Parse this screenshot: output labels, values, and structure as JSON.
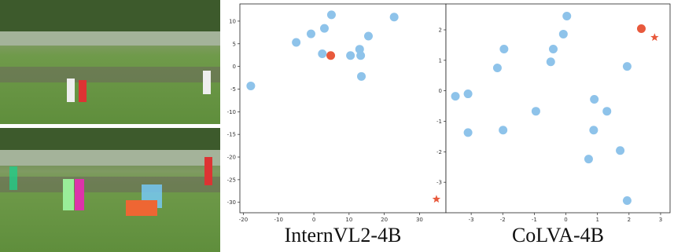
{
  "chart_data": [
    {
      "type": "scatter",
      "title": "InternVL2-4B",
      "xlim": [
        -21,
        37.5
      ],
      "ylim": [
        -32.3,
        13.8
      ],
      "xticks": [
        -20,
        -10,
        0,
        10,
        20,
        30
      ],
      "yticks": [
        -30,
        -25,
        -20,
        -15,
        -10,
        -5,
        0,
        5,
        10
      ],
      "series": [
        {
          "color": "#8ec3ea",
          "marker": "circle",
          "x": [
            -17.9,
            -5.0,
            -0.8,
            3.0,
            5.0,
            2.4,
            13.3,
            10.4,
            13.0,
            15.5,
            13.5,
            22.8
          ],
          "values": [
            -4.3,
            5.3,
            7.2,
            8.4,
            11.4,
            2.8,
            2.4,
            2.4,
            3.8,
            6.7,
            -2.2,
            10.9
          ]
        },
        {
          "color": "#e8593c",
          "marker": "circle",
          "x": [
            4.8
          ],
          "values": [
            2.4
          ]
        },
        {
          "color": "#e8593c",
          "marker": "star",
          "x": [
            34.8
          ],
          "values": [
            -29.3
          ]
        }
      ]
    },
    {
      "type": "scatter",
      "title": "CoLVA-4B",
      "xlim": [
        -3.8,
        3.3
      ],
      "ylim": [
        -4.0,
        2.85
      ],
      "xticks": [
        -3,
        -2,
        -1,
        0,
        1,
        2,
        3
      ],
      "yticks": [
        -3,
        -2,
        -1,
        0,
        1,
        2
      ],
      "series": [
        {
          "color": "#8ec3ea",
          "marker": "circle",
          "x": [
            -3.5,
            -3.1,
            -3.1,
            -2.17,
            -1.96,
            -1.99,
            -0.95,
            -0.48,
            -0.4,
            -0.08,
            0.03,
            0.9,
            0.88,
            1.3,
            0.72,
            1.94,
            1.72,
            1.94
          ],
          "values": [
            -0.18,
            -0.1,
            -1.37,
            0.75,
            1.37,
            -1.29,
            -0.67,
            0.95,
            1.37,
            1.86,
            2.45,
            -0.28,
            -1.29,
            -0.67,
            -2.24,
            0.8,
            -1.96,
            -3.6
          ]
        },
        {
          "color": "#e8593c",
          "marker": "circle",
          "x": [
            2.39
          ],
          "values": [
            2.04
          ]
        },
        {
          "color": "#e8593c",
          "marker": "star",
          "x": [
            2.81
          ],
          "values": [
            1.75
          ]
        }
      ]
    }
  ]
}
